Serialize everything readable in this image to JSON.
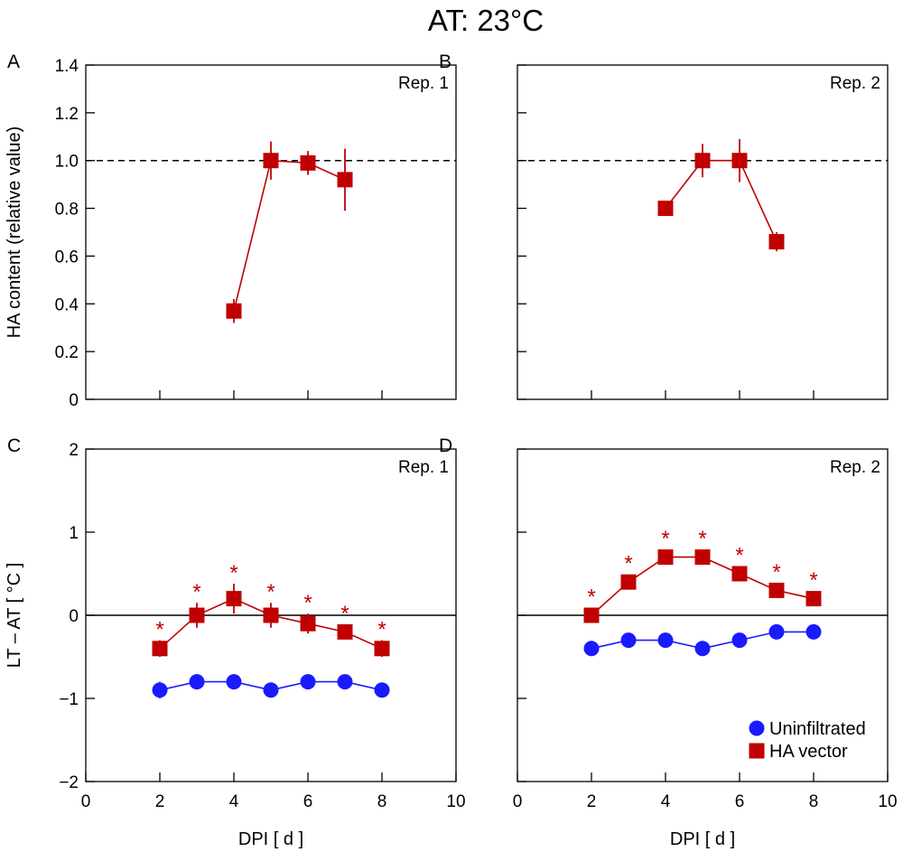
{
  "title": "AT: 23°C",
  "colors": {
    "ha_vector": "#c00000",
    "uninfiltrated": "#1a1aff"
  },
  "legend": {
    "uninfiltrated": "Uninfiltrated",
    "ha_vector": "HA vector"
  },
  "chart_data": [
    {
      "panel": "A",
      "type": "line",
      "rep_label": "Rep. 1",
      "ylabel": "HA content (relative value)",
      "xlabel": "",
      "xlim": [
        0,
        10
      ],
      "ylim": [
        0,
        1.4
      ],
      "yticks": [
        0,
        0.2,
        0.4,
        0.6,
        0.8,
        1.0,
        1.2,
        1.4
      ],
      "ytick_labels": [
        "0",
        "0.2",
        "0.4",
        "0.6",
        "0.8",
        "1.0",
        "1.2",
        "1.4"
      ],
      "xticks": [
        2,
        4,
        6,
        8
      ],
      "xtick_labels": [],
      "reference_line": {
        "y": 1.0,
        "style": "dashed"
      },
      "series": [
        {
          "name": "HA vector",
          "marker": "square",
          "x": [
            4,
            5,
            6,
            7
          ],
          "values": [
            0.37,
            1.0,
            0.99,
            0.92
          ],
          "errors": [
            0.05,
            0.08,
            0.05,
            0.13
          ],
          "stars": []
        }
      ]
    },
    {
      "panel": "B",
      "type": "line",
      "rep_label": "Rep. 2",
      "ylabel": "",
      "xlabel": "",
      "xlim": [
        0,
        10
      ],
      "ylim": [
        0,
        1.4
      ],
      "yticks": [
        0,
        0.2,
        0.4,
        0.6,
        0.8,
        1.0,
        1.2,
        1.4
      ],
      "ytick_labels": [],
      "xticks": [
        2,
        4,
        6,
        8
      ],
      "xtick_labels": [],
      "reference_line": {
        "y": 1.0,
        "style": "dashed"
      },
      "series": [
        {
          "name": "HA vector",
          "marker": "square",
          "x": [
            4,
            5,
            6,
            7
          ],
          "values": [
            0.8,
            1.0,
            1.0,
            0.66
          ],
          "errors": [
            0.02,
            0.07,
            0.09,
            0.04
          ],
          "stars": []
        }
      ]
    },
    {
      "panel": "C",
      "type": "line",
      "rep_label": "Rep. 1",
      "ylabel": "LT – AT [ °C ]",
      "xlabel": "DPI [ d ]",
      "xlim": [
        0,
        10
      ],
      "ylim": [
        -2,
        2
      ],
      "yticks": [
        -2,
        -1,
        0,
        1,
        2
      ],
      "ytick_labels": [
        "−2",
        "−1",
        "0",
        "1",
        "2"
      ],
      "xticks": [
        0,
        2,
        4,
        6,
        8,
        10
      ],
      "xtick_labels": [
        "0",
        "2",
        "4",
        "6",
        "8",
        "10"
      ],
      "reference_line": {
        "y": 0,
        "style": "solid"
      },
      "series": [
        {
          "name": "Uninfiltrated",
          "marker": "circle",
          "x": [
            2,
            3,
            4,
            5,
            6,
            7,
            8
          ],
          "values": [
            -0.9,
            -0.8,
            -0.8,
            -0.9,
            -0.8,
            -0.8,
            -0.9
          ],
          "errors": [
            0.1,
            0.08,
            0.08,
            0.04,
            0.05,
            0.04,
            0.04
          ],
          "stars": []
        },
        {
          "name": "HA vector",
          "marker": "square",
          "x": [
            2,
            3,
            4,
            5,
            6,
            7,
            8
          ],
          "values": [
            -0.4,
            0.0,
            0.2,
            0.0,
            -0.1,
            -0.2,
            -0.4
          ],
          "errors": [
            0.1,
            0.15,
            0.18,
            0.15,
            0.12,
            0.09,
            0.1
          ],
          "stars": [
            "*",
            "*",
            "*",
            "*",
            "*",
            "*",
            "*"
          ]
        }
      ]
    },
    {
      "panel": "D",
      "type": "line",
      "rep_label": "Rep. 2",
      "ylabel": "",
      "xlabel": "DPI [ d ]",
      "xlim": [
        0,
        10
      ],
      "ylim": [
        -2,
        2
      ],
      "yticks": [
        -2,
        -1,
        0,
        1,
        2
      ],
      "ytick_labels": [],
      "xticks": [
        0,
        2,
        4,
        6,
        8,
        10
      ],
      "xtick_labels": [
        "0",
        "2",
        "4",
        "6",
        "8",
        "10"
      ],
      "reference_line": {
        "y": 0,
        "style": "solid"
      },
      "series": [
        {
          "name": "Uninfiltrated",
          "marker": "circle",
          "x": [
            2,
            3,
            4,
            5,
            6,
            7,
            8
          ],
          "values": [
            -0.4,
            -0.3,
            -0.3,
            -0.4,
            -0.3,
            -0.2,
            -0.2
          ],
          "errors": [
            0.03,
            0.03,
            0.03,
            0.03,
            0.03,
            0.03,
            0.03
          ],
          "stars": []
        },
        {
          "name": "HA vector",
          "marker": "square",
          "x": [
            2,
            3,
            4,
            5,
            6,
            7,
            8
          ],
          "values": [
            0.0,
            0.4,
            0.7,
            0.7,
            0.5,
            0.3,
            0.2
          ],
          "errors": [
            0.04,
            0.05,
            0.06,
            0.06,
            0.08,
            0.09,
            0.07
          ],
          "stars": [
            "*",
            "*",
            "*",
            "*",
            "*",
            "*",
            "*"
          ]
        }
      ]
    }
  ]
}
